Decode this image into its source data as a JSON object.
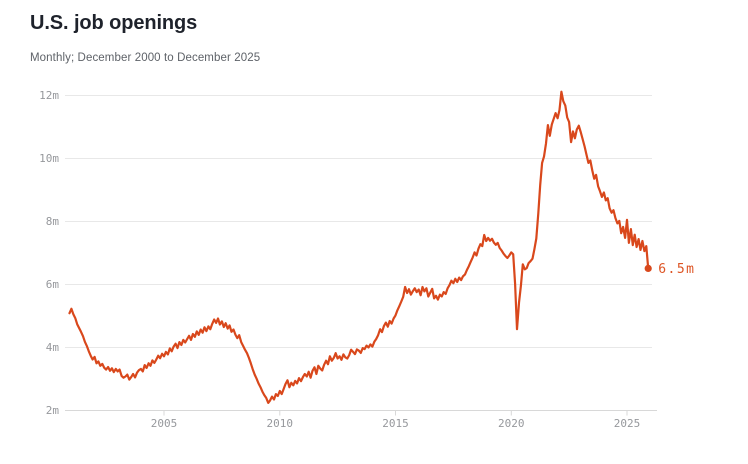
{
  "header": {
    "title": "U.S. job openings",
    "subtitle": "Monthly; December 2000 to December 2025"
  },
  "colors": {
    "line": "#d9481c",
    "end_label": "#dd5424",
    "grid": "#e8e8e8",
    "axis": "#d8d8d8",
    "tick_label": "#96989c",
    "title": "#1e222b",
    "subtitle": "#5e6268",
    "background": "#ffffff"
  },
  "chart_data": {
    "type": "line",
    "title": "U.S. job openings",
    "subtitle": "Monthly; December 2000 to December 2025",
    "series_name": "U.S. job openings (millions)",
    "unit": "millions",
    "frequency": "monthly",
    "x_start_year_fraction": 2000.9167,
    "x_tick_years": [
      2005,
      2010,
      2015,
      2020,
      2025
    ],
    "x_tick_labels": [
      "2005",
      "2010",
      "2015",
      "2020",
      "2025"
    ],
    "y_ticks": [
      2,
      4,
      6,
      8,
      10,
      12
    ],
    "y_tick_labels": [
      "2m",
      "4m",
      "6m",
      "8m",
      "10m",
      "12m"
    ],
    "ylim": [
      2,
      12
    ],
    "grid": true,
    "legend_position": "none",
    "end_label": "6.5m",
    "values": [
      5.09,
      5.23,
      5.06,
      4.93,
      4.74,
      4.62,
      4.5,
      4.36,
      4.18,
      4.05,
      3.88,
      3.74,
      3.62,
      3.7,
      3.5,
      3.56,
      3.42,
      3.48,
      3.36,
      3.3,
      3.38,
      3.26,
      3.34,
      3.22,
      3.32,
      3.24,
      3.3,
      3.1,
      3.04,
      3.08,
      3.14,
      2.98,
      3.06,
      3.16,
      3.05,
      3.2,
      3.28,
      3.32,
      3.24,
      3.44,
      3.35,
      3.5,
      3.42,
      3.59,
      3.51,
      3.62,
      3.74,
      3.66,
      3.8,
      3.72,
      3.86,
      3.78,
      3.97,
      3.88,
      4.03,
      4.12,
      3.98,
      4.17,
      4.08,
      4.24,
      4.16,
      4.27,
      4.37,
      4.24,
      4.43,
      4.34,
      4.51,
      4.4,
      4.57,
      4.47,
      4.64,
      4.52,
      4.67,
      4.58,
      4.75,
      4.89,
      4.78,
      4.92,
      4.73,
      4.83,
      4.65,
      4.77,
      4.6,
      4.7,
      4.5,
      4.57,
      4.41,
      4.3,
      4.39,
      4.17,
      4.05,
      3.93,
      3.82,
      3.67,
      3.5,
      3.31,
      3.14,
      3.01,
      2.86,
      2.74,
      2.6,
      2.49,
      2.4,
      2.24,
      2.32,
      2.44,
      2.35,
      2.52,
      2.46,
      2.62,
      2.52,
      2.68,
      2.84,
      2.96,
      2.74,
      2.88,
      2.8,
      2.94,
      2.86,
      3.03,
      2.93,
      3.06,
      3.16,
      3.08,
      3.23,
      3.04,
      3.26,
      3.37,
      3.16,
      3.42,
      3.33,
      3.27,
      3.45,
      3.58,
      3.47,
      3.72,
      3.58,
      3.67,
      3.82,
      3.65,
      3.72,
      3.61,
      3.78,
      3.69,
      3.65,
      3.76,
      3.93,
      3.86,
      3.79,
      3.94,
      3.9,
      3.83,
      3.98,
      3.95,
      4.06,
      4.0,
      4.1,
      4.03,
      4.18,
      4.27,
      4.39,
      4.58,
      4.49,
      4.68,
      4.79,
      4.66,
      4.84,
      4.76,
      4.92,
      5.02,
      5.18,
      5.32,
      5.46,
      5.61,
      5.92,
      5.73,
      5.85,
      5.68,
      5.79,
      5.88,
      5.76,
      5.84,
      5.66,
      5.92,
      5.78,
      5.88,
      5.62,
      5.74,
      5.86,
      5.56,
      5.64,
      5.52,
      5.68,
      5.62,
      5.76,
      5.7,
      5.88,
      5.98,
      6.12,
      6.04,
      6.18,
      6.08,
      6.22,
      6.14,
      6.26,
      6.32,
      6.46,
      6.58,
      6.72,
      6.86,
      7.02,
      6.92,
      7.14,
      7.28,
      7.22,
      7.57,
      7.38,
      7.48,
      7.39,
      7.45,
      7.33,
      7.26,
      7.32,
      7.16,
      7.08,
      6.98,
      6.9,
      6.84,
      6.92,
      7.02,
      6.96,
      6.02,
      4.58,
      5.42,
      5.96,
      6.64,
      6.48,
      6.52,
      6.68,
      6.74,
      6.82,
      7.12,
      7.46,
      8.26,
      9.16,
      9.86,
      10.06,
      10.48,
      11.06,
      10.72,
      11.08,
      11.26,
      11.44,
      11.28,
      11.54,
      12.12,
      11.82,
      11.68,
      11.3,
      11.16,
      10.52,
      10.86,
      10.64,
      10.92,
      11.04,
      10.84,
      10.62,
      10.38,
      10.12,
      9.86,
      9.94,
      9.62,
      9.36,
      9.48,
      9.12,
      8.96,
      8.78,
      8.92,
      8.67,
      8.74,
      8.42,
      8.28,
      8.36,
      8.11,
      7.94,
      8.02,
      7.63,
      7.83,
      7.48,
      8.05,
      7.32,
      7.76,
      7.25,
      7.58,
      7.19,
      7.44,
      7.1,
      7.38,
      7.06,
      7.22,
      6.51
    ]
  }
}
